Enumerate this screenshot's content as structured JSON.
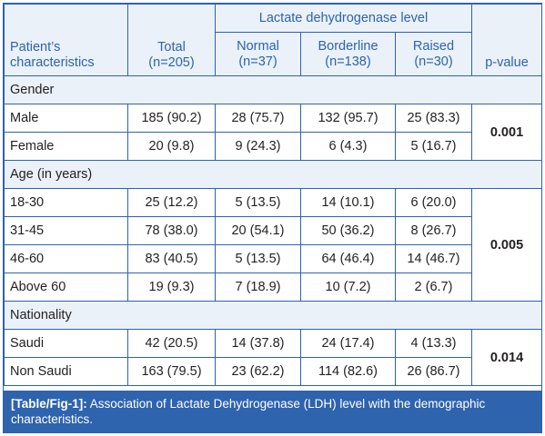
{
  "header": {
    "group": "Lactate dehydrogenase level",
    "col_characteristics": "Patient’s characteristics",
    "col_total": "Total (n=205)",
    "col_normal": "Normal (n=37)",
    "col_borderline": "Borderline (n=138)",
    "col_raised": "Raised (n=30)",
    "col_pvalue": "p-value",
    "lines": {
      "characteristics": [
        "Patient’s",
        "characteristics"
      ],
      "total": [
        "Total",
        "(n=205)"
      ],
      "normal": [
        "Normal",
        "(n=37)"
      ],
      "borderline": [
        "Borderline",
        "(n=138)"
      ],
      "raised": [
        "Raised",
        "(n=30)"
      ]
    }
  },
  "sections": [
    {
      "title": "Gender",
      "pvalue": "0.001",
      "rows": [
        {
          "label": "Male",
          "total": "185 (90.2)",
          "normal": "28 (75.7)",
          "borderline": "132 (95.7)",
          "raised": "25 (83.3)"
        },
        {
          "label": "Female",
          "total": "20 (9.8)",
          "normal": "9 (24.3)",
          "borderline": "6 (4.3)",
          "raised": "5 (16.7)"
        }
      ]
    },
    {
      "title": "Age (in years)",
      "pvalue": "0.005",
      "rows": [
        {
          "label": "18-30",
          "total": "25 (12.2)",
          "normal": "5 (13.5)",
          "borderline": "14 (10.1)",
          "raised": "6 (20.0)"
        },
        {
          "label": "31-45",
          "total": "78 (38.0)",
          "normal": "20 (54.1)",
          "borderline": "50 (36.2)",
          "raised": "8 (26.7)"
        },
        {
          "label": "46-60",
          "total": "83 (40.5)",
          "normal": "5 (13.5)",
          "borderline": "64 (46.4)",
          "raised": "14 (46.7)"
        },
        {
          "label": "Above 60",
          "total": "19 (9.3)",
          "normal": "7 (18.9)",
          "borderline": "10 (7.2)",
          "raised": "2 (6.7)"
        }
      ]
    },
    {
      "title": "Nationality",
      "pvalue": "0.014",
      "rows": [
        {
          "label": "Saudi",
          "total": "42 (20.5)",
          "normal": "14 (37.8)",
          "borderline": "24 (17.4)",
          "raised": "4 (13.3)"
        },
        {
          "label": "Non Saudi",
          "total": "163 (79.5)",
          "normal": "23 (62.2)",
          "borderline": "114 (82.6)",
          "raised": "26 (86.7)"
        }
      ]
    }
  ],
  "caption": {
    "label": "[Table/Fig-1]:",
    "text": " Association of Lactate Dehydrogenase (LDH) level with the demographic characteristics."
  },
  "colors": {
    "accent": "#2e63ad",
    "header_fill": "#eaf1f9",
    "text": "#231f20"
  }
}
